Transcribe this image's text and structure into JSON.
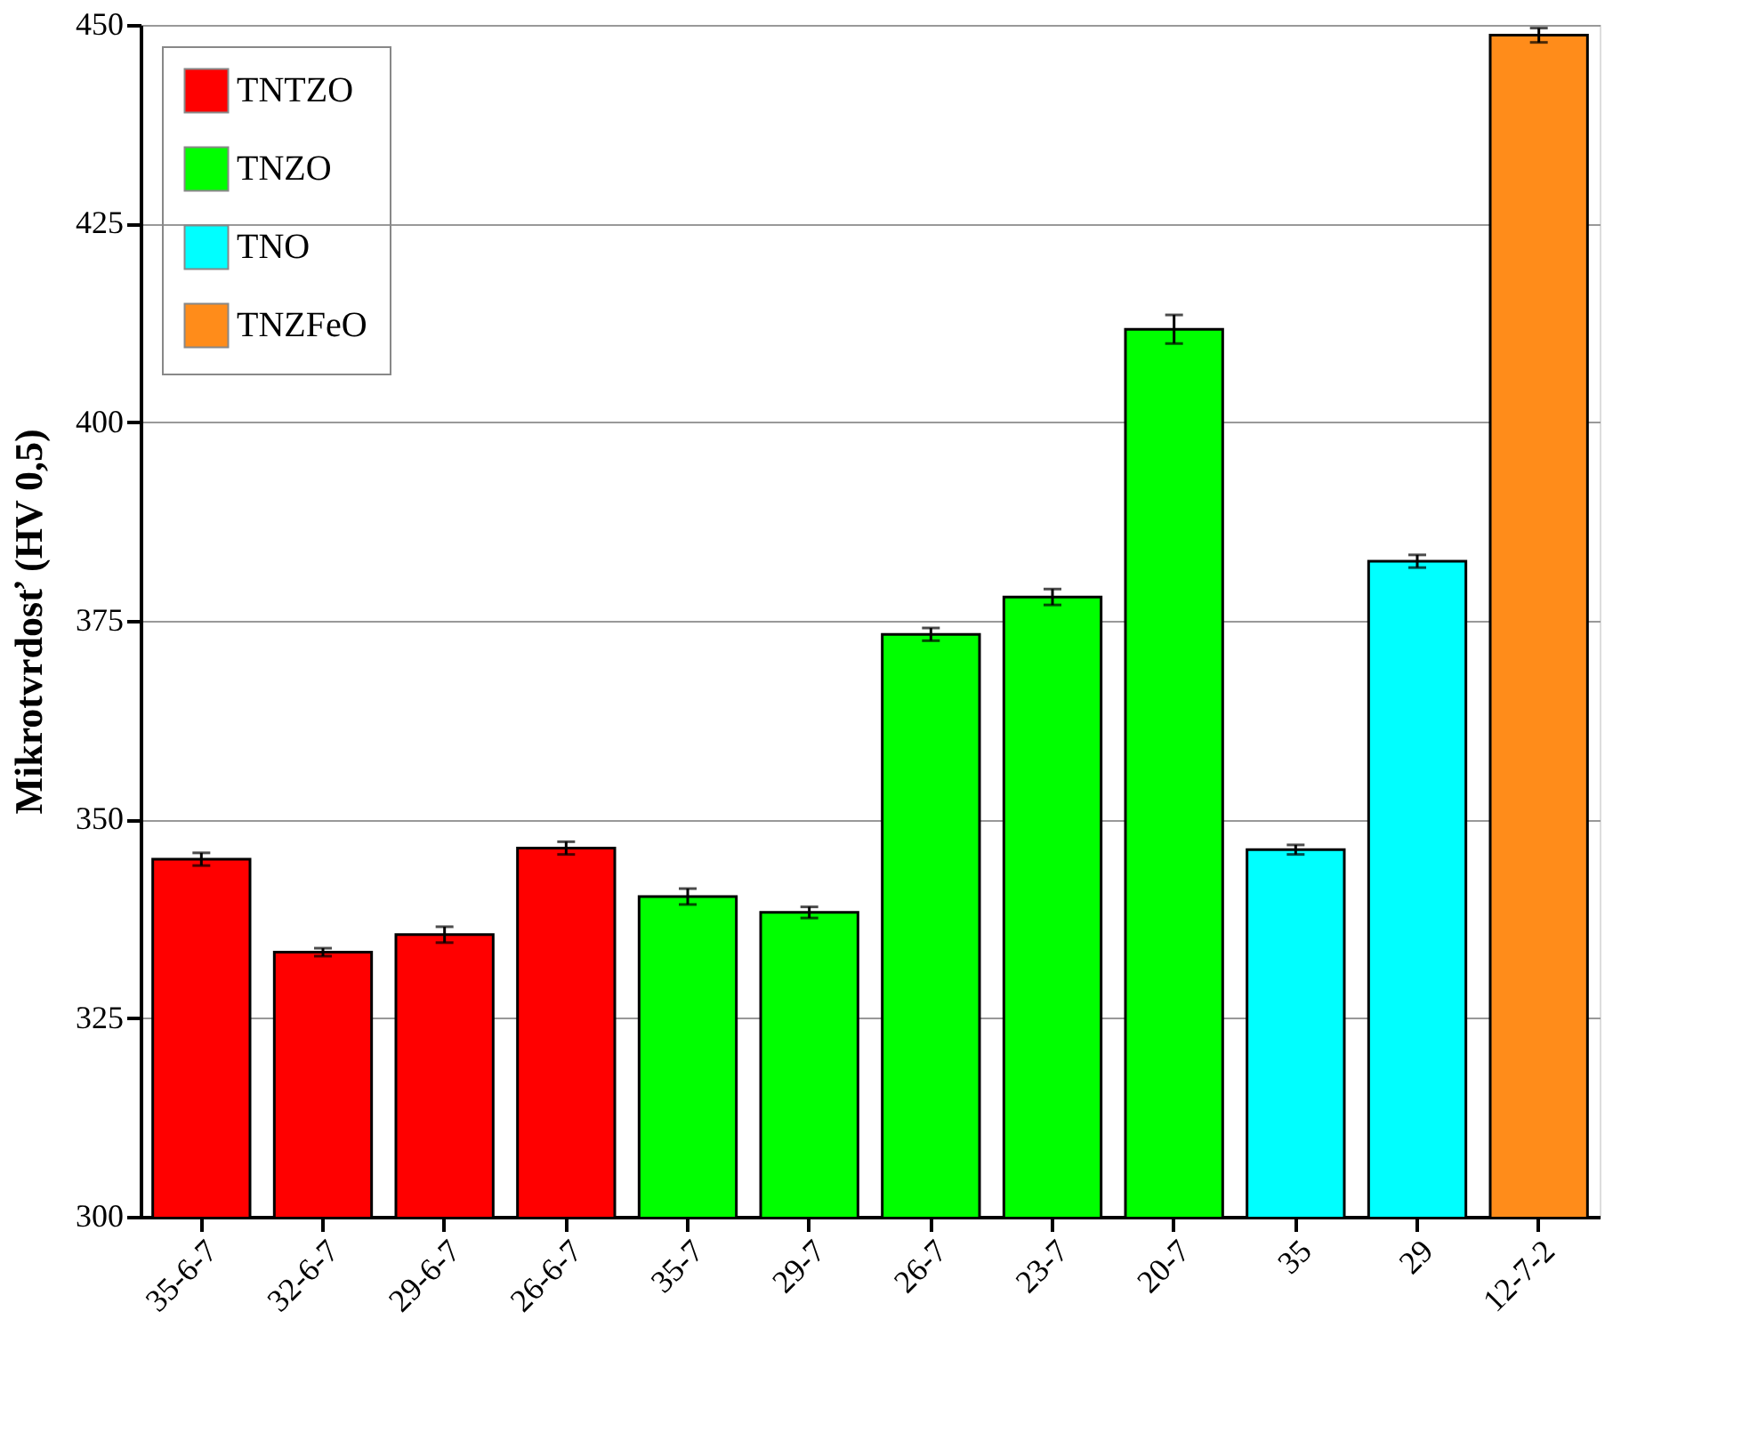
{
  "chart_data": {
    "type": "bar",
    "ylabel": "Mikrotvrdosť (HV 0,5)",
    "categories": [
      "35-6-7",
      "32-6-7",
      "29-6-7",
      "26-6-7",
      "35-7",
      "29-7",
      "26-7",
      "23-7",
      "20-7",
      "35",
      "29",
      "12-7-2"
    ],
    "series": [
      {
        "name": "TNTZO",
        "color": "#ff0000",
        "values": [
          345,
          333.3,
          335.5,
          346.4,
          null,
          null,
          null,
          null,
          null,
          null,
          null,
          null
        ],
        "errors": [
          0.8,
          0.5,
          1,
          0.8,
          null,
          null,
          null,
          null,
          null,
          null,
          null,
          null
        ]
      },
      {
        "name": "TNZO",
        "color": "#00ff00",
        "values": [
          null,
          null,
          null,
          null,
          340.3,
          338.3,
          373.3,
          378,
          411.7,
          null,
          null,
          null
        ],
        "errors": [
          null,
          null,
          null,
          null,
          1,
          0.7,
          0.8,
          1,
          1.8,
          null,
          null,
          null
        ]
      },
      {
        "name": "TNO",
        "color": "#00ffff",
        "values": [
          null,
          null,
          null,
          null,
          null,
          null,
          null,
          null,
          null,
          346.2,
          382.5,
          null
        ],
        "errors": [
          null,
          null,
          null,
          null,
          null,
          null,
          null,
          null,
          null,
          0.6,
          0.8,
          null
        ]
      },
      {
        "name": "TNZFeO",
        "color": "#ff8c1a",
        "values": [
          null,
          null,
          null,
          null,
          null,
          null,
          null,
          null,
          null,
          null,
          null,
          448.7
        ],
        "errors": [
          null,
          null,
          null,
          null,
          null,
          null,
          null,
          null,
          null,
          null,
          null,
          0.9
        ]
      }
    ],
    "ylim": [
      300,
      450
    ],
    "yticks": [
      300,
      325,
      350,
      375,
      400,
      425,
      450
    ],
    "grid": "y",
    "legend": "top left"
  }
}
